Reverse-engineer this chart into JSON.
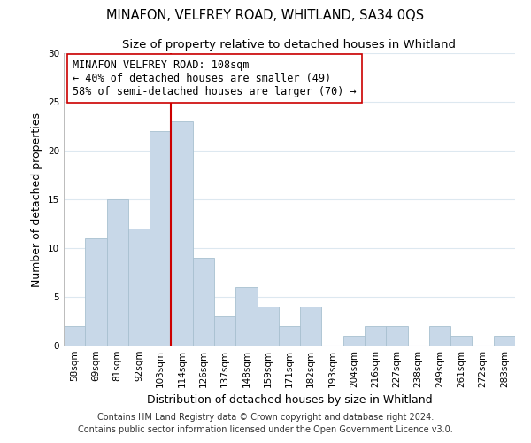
{
  "title": "MINAFON, VELFREY ROAD, WHITLAND, SA34 0QS",
  "subtitle": "Size of property relative to detached houses in Whitland",
  "xlabel": "Distribution of detached houses by size in Whitland",
  "ylabel": "Number of detached properties",
  "bin_labels": [
    "58sqm",
    "69sqm",
    "81sqm",
    "92sqm",
    "103sqm",
    "114sqm",
    "126sqm",
    "137sqm",
    "148sqm",
    "159sqm",
    "171sqm",
    "182sqm",
    "193sqm",
    "204sqm",
    "216sqm",
    "227sqm",
    "238sqm",
    "249sqm",
    "261sqm",
    "272sqm",
    "283sqm"
  ],
  "bar_heights": [
    2,
    11,
    15,
    12,
    22,
    23,
    9,
    3,
    6,
    4,
    2,
    4,
    0,
    1,
    2,
    2,
    0,
    2,
    1,
    0,
    1
  ],
  "bar_color": "#c8d8e8",
  "bar_edge_color": "#a8c0d0",
  "vline_x_idx": 4.5,
  "vline_color": "#cc0000",
  "annotation_text": "MINAFON VELFREY ROAD: 108sqm\n← 40% of detached houses are smaller (49)\n58% of semi-detached houses are larger (70) →",
  "annotation_box_color": "#ffffff",
  "annotation_box_edge_color": "#cc0000",
  "ylim": [
    0,
    30
  ],
  "yticks": [
    0,
    5,
    10,
    15,
    20,
    25,
    30
  ],
  "footer_line1": "Contains HM Land Registry data © Crown copyright and database right 2024.",
  "footer_line2": "Contains public sector information licensed under the Open Government Licence v3.0.",
  "background_color": "#ffffff",
  "grid_color": "#dde8f0",
  "title_fontsize": 10.5,
  "subtitle_fontsize": 9.5,
  "axis_label_fontsize": 9,
  "tick_fontsize": 7.5,
  "annotation_fontsize": 8.5,
  "footer_fontsize": 7
}
